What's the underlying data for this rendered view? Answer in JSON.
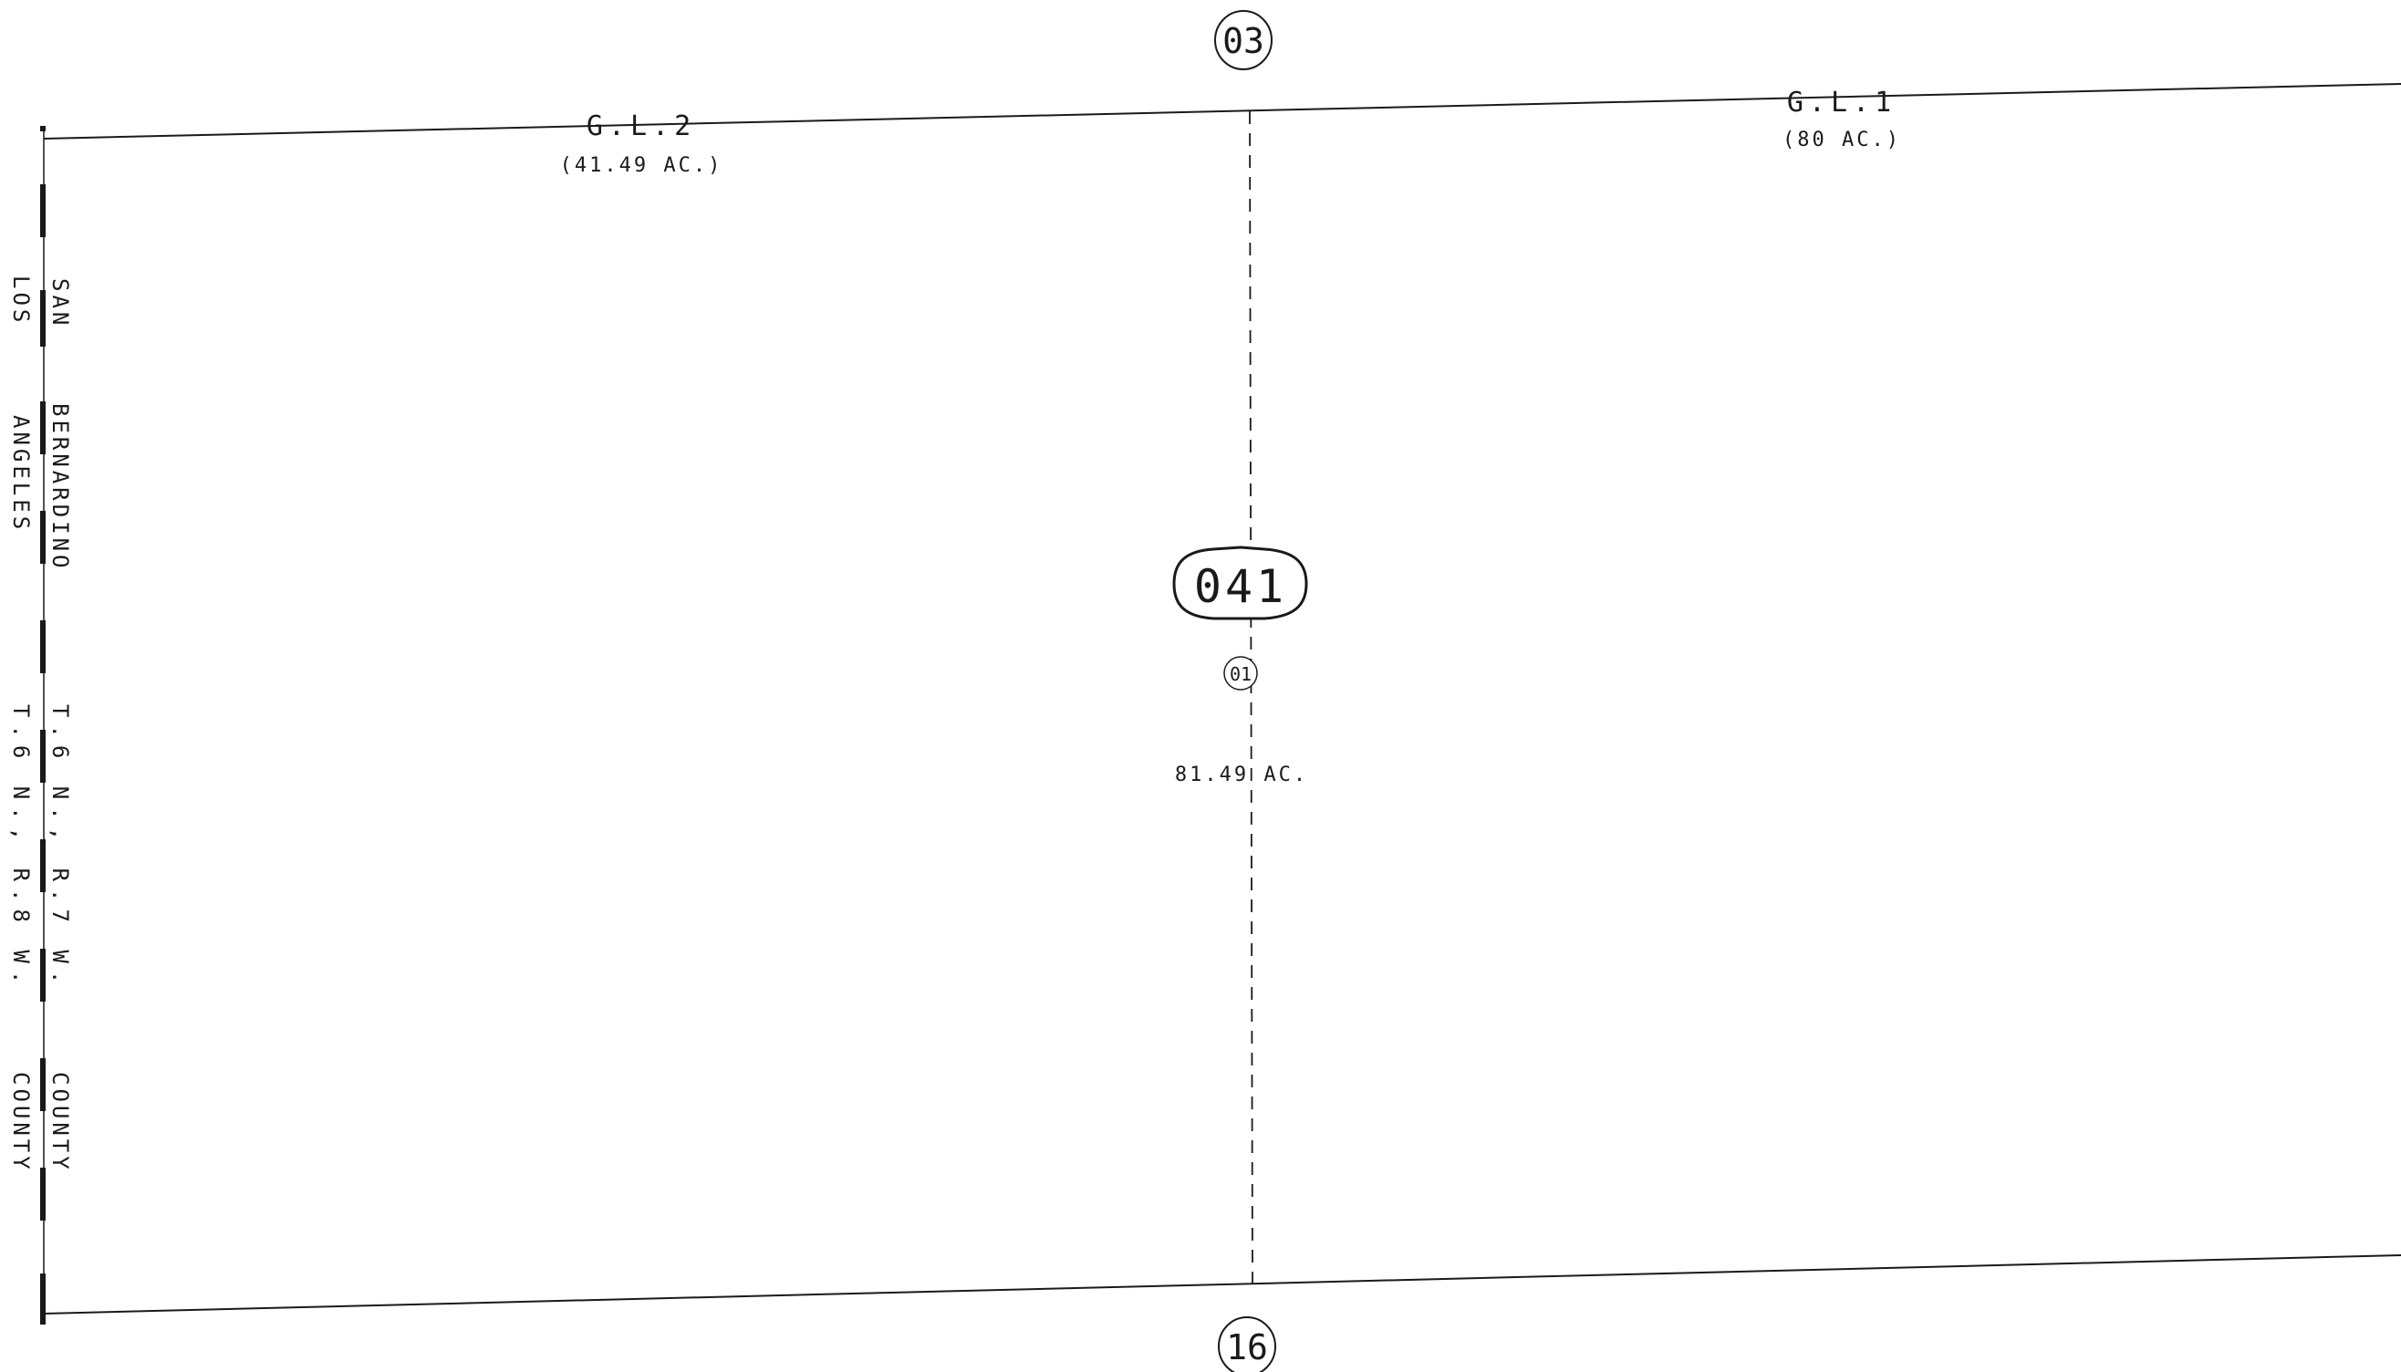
{
  "map": {
    "adjoining_top": "03",
    "adjoining_bottom": "16",
    "book_page": "041",
    "parcel_number": "01",
    "parcel_area": "81.49 AC.",
    "lots": [
      {
        "label": "G.L.2",
        "area": "(41.49 AC.)"
      },
      {
        "label": "G.L.1",
        "area": "(80 AC.)"
      }
    ],
    "county_line": {
      "east_side": [
        "SAN",
        "BERNARDINO",
        "T.6 N., R.7 W.",
        "COUNTY"
      ],
      "west_side": [
        "LOS",
        "ANGELES",
        "T.6 N., R.8 W.",
        "COUNTY"
      ]
    },
    "colors": {
      "line": "#1a1a1a",
      "background": "#ffffff"
    }
  }
}
